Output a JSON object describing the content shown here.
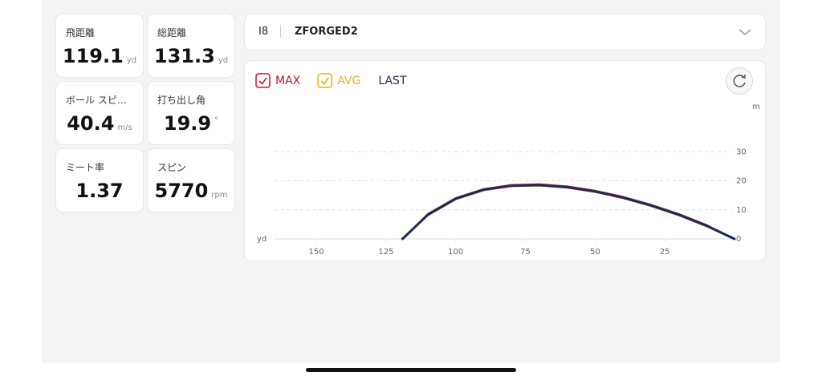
{
  "stats": [
    {
      "label": "飛距離",
      "value": "119.1",
      "unit": "yd"
    },
    {
      "label": "総距離",
      "value": "131.3",
      "unit": "yd"
    },
    {
      "label": "ボール スピ…",
      "value": "40.4",
      "unit": "m/s"
    },
    {
      "label": "打ち出し角",
      "value": "19.9",
      "unit": "°"
    },
    {
      "label": "ミート率",
      "value": "1.37"
    },
    {
      "label": "スピン",
      "value": "5770",
      "unit": "rpm"
    }
  ],
  "club": {
    "number": "I8",
    "name": "ZFORGED2"
  },
  "chart_data": {
    "type": "line",
    "x_label": "yd",
    "y_label": "m",
    "x": [
      0,
      10,
      20,
      30,
      40,
      50,
      60,
      70,
      80,
      90,
      100,
      110,
      119.1
    ],
    "series": [
      {
        "name": "MAX",
        "color": "#c8102e",
        "checked": true,
        "values": [
          0,
          4.8,
          8.6,
          11.8,
          14.5,
          16.6,
          18.1,
          18.8,
          18.6,
          17.2,
          14.1,
          8.6,
          0
        ]
      },
      {
        "name": "AVG",
        "color": "#e8b21a",
        "checked": true,
        "values": [
          0,
          4.3,
          8.1,
          11.3,
          14.0,
          16.1,
          17.6,
          18.3,
          18.1,
          16.7,
          13.6,
          8.1,
          0
        ]
      },
      {
        "name": "LAST",
        "color": "#1c2a5a",
        "checked": false,
        "values": [
          0,
          4.5,
          8.3,
          11.5,
          14.2,
          16.3,
          17.8,
          18.5,
          18.3,
          16.9,
          13.8,
          8.3,
          0
        ]
      }
    ],
    "xlim": [
      165,
      0
    ],
    "xticks": [
      150,
      125,
      100,
      75,
      50,
      25
    ],
    "ylim": [
      0,
      40
    ],
    "yticks": [
      0,
      10,
      20,
      30
    ],
    "grid": true
  }
}
